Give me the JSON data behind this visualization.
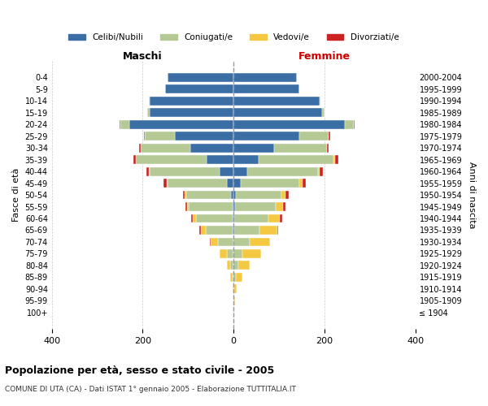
{
  "age_groups": [
    "100+",
    "95-99",
    "90-94",
    "85-89",
    "80-84",
    "75-79",
    "70-74",
    "65-69",
    "60-64",
    "55-59",
    "50-54",
    "45-49",
    "40-44",
    "35-39",
    "30-34",
    "25-29",
    "20-24",
    "15-19",
    "10-14",
    "5-9",
    "0-4"
  ],
  "birth_years": [
    "≤ 1904",
    "1905-1909",
    "1910-1914",
    "1915-1919",
    "1920-1924",
    "1925-1929",
    "1930-1934",
    "1935-1939",
    "1940-1944",
    "1945-1949",
    "1950-1954",
    "1955-1959",
    "1960-1964",
    "1965-1969",
    "1970-1974",
    "1975-1979",
    "1980-1984",
    "1985-1989",
    "1990-1994",
    "1995-1999",
    "2000-2004"
  ],
  "colors": {
    "celibi": "#3a6ea5",
    "coniugati": "#b5c994",
    "vedovi": "#f5c842",
    "divorziati": "#cc2222"
  },
  "maschi": {
    "celibi": [
      0,
      0,
      0,
      0,
      0,
      0,
      0,
      2,
      2,
      3,
      5,
      15,
      30,
      60,
      95,
      130,
      230,
      185,
      185,
      150,
      145
    ],
    "coniugati": [
      0,
      0,
      1,
      3,
      7,
      15,
      35,
      60,
      80,
      95,
      100,
      130,
      155,
      155,
      110,
      65,
      20,
      5,
      2,
      0,
      0
    ],
    "vedovi": [
      0,
      0,
      1,
      4,
      8,
      15,
      15,
      10,
      8,
      5,
      3,
      2,
      2,
      1,
      0,
      0,
      0,
      0,
      0,
      0,
      0
    ],
    "divorziati": [
      0,
      0,
      0,
      0,
      0,
      1,
      2,
      3,
      3,
      3,
      4,
      7,
      5,
      4,
      3,
      2,
      1,
      0,
      0,
      0,
      0
    ]
  },
  "femmine": {
    "celibi": [
      0,
      0,
      0,
      0,
      0,
      0,
      0,
      2,
      2,
      3,
      5,
      15,
      30,
      55,
      90,
      145,
      245,
      195,
      190,
      145,
      140
    ],
    "coniugati": [
      0,
      1,
      2,
      5,
      10,
      20,
      35,
      55,
      75,
      90,
      100,
      130,
      155,
      165,
      115,
      65,
      20,
      5,
      2,
      0,
      0
    ],
    "vedovi": [
      1,
      2,
      5,
      15,
      25,
      40,
      45,
      40,
      25,
      15,
      10,
      7,
      5,
      3,
      1,
      0,
      0,
      0,
      0,
      0,
      0
    ],
    "divorziati": [
      0,
      0,
      0,
      0,
      0,
      1,
      1,
      2,
      5,
      6,
      6,
      7,
      7,
      7,
      4,
      2,
      1,
      0,
      0,
      0,
      0
    ]
  },
  "xlim": 400,
  "title": "Popolazione per età, sesso e stato civile - 2005",
  "subtitle": "COMUNE DI UTA (CA) - Dati ISTAT 1° gennaio 2005 - Elaborazione TUTTITALIA.IT",
  "xlabel_left": "Maschi",
  "xlabel_right": "Femmine",
  "ylabel_left": "Fasce di età",
  "ylabel_right": "Anni di nascita",
  "grid_color": "#cccccc",
  "legend_labels": [
    "Celibi/Nubili",
    "Coniugati/e",
    "Vedovi/e",
    "Divorziati/e"
  ],
  "legend_keys": [
    "celibi",
    "coniugati",
    "vedovi",
    "divorziati"
  ]
}
